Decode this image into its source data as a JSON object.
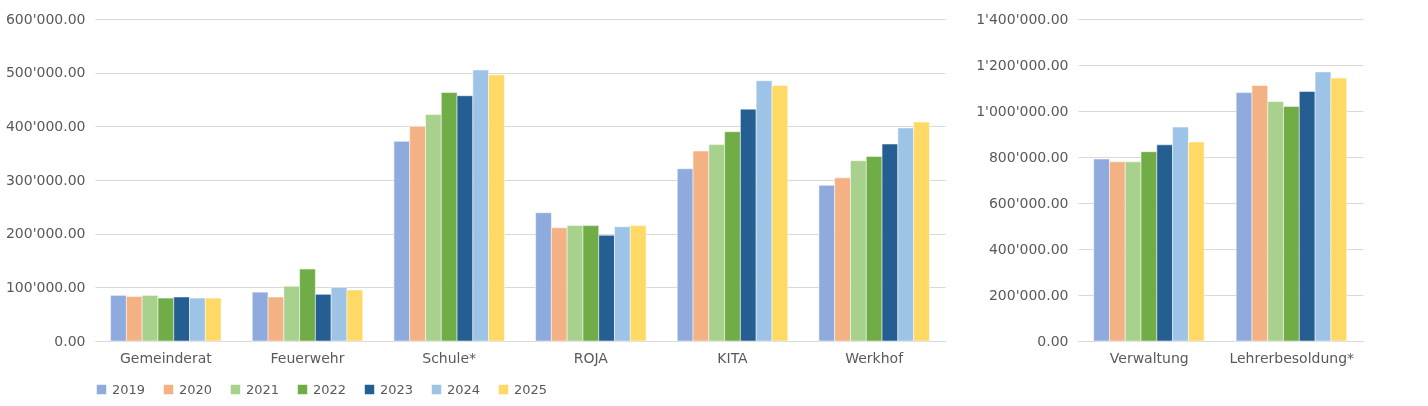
{
  "chart_data": [
    {
      "type": "bar",
      "categories": [
        "Gemeinderat",
        "Feuerwehr",
        "Schule*",
        "ROJA",
        "KITA",
        "Werkhof"
      ],
      "series": [
        {
          "name": "2019",
          "color": "#8faadc",
          "values": [
            85000,
            91000,
            372000,
            239000,
            321000,
            290000
          ]
        },
        {
          "name": "2020",
          "color": "#f4b183",
          "values": [
            83000,
            82000,
            400000,
            211000,
            354000,
            304000
          ]
        },
        {
          "name": "2021",
          "color": "#a9d18e",
          "values": [
            85000,
            102000,
            422000,
            215000,
            366000,
            336000
          ]
        },
        {
          "name": "2022",
          "color": "#70ad47",
          "values": [
            80000,
            134000,
            463000,
            215000,
            390000,
            344000
          ]
        },
        {
          "name": "2023",
          "color": "#255e91",
          "values": [
            82000,
            87000,
            457000,
            197000,
            432000,
            367000
          ]
        },
        {
          "name": "2024",
          "color": "#9dc3e6",
          "values": [
            80000,
            100000,
            505000,
            213000,
            485000,
            397000
          ]
        },
        {
          "name": "2025",
          "color": "#ffd966",
          "values": [
            80000,
            95000,
            496000,
            215000,
            476000,
            408000
          ]
        }
      ],
      "ylim": [
        0,
        600000
      ],
      "yticks": [
        {
          "value": 0,
          "label": "0.00"
        },
        {
          "value": 100000,
          "label": "100'000.00"
        },
        {
          "value": 200000,
          "label": "200'000.00"
        },
        {
          "value": 300000,
          "label": "300'000.00"
        },
        {
          "value": 400000,
          "label": "400'000.00"
        },
        {
          "value": 500000,
          "label": "500'000.00"
        },
        {
          "value": 600000,
          "label": "600'000.00"
        }
      ],
      "grid": "y",
      "legend": "bottom"
    },
    {
      "type": "bar",
      "categories": [
        "Verwaltung",
        "Lehrerbesoldung*"
      ],
      "series": [
        {
          "name": "2019",
          "color": "#8faadc",
          "values": [
            791000,
            1080000
          ]
        },
        {
          "name": "2020",
          "color": "#f4b183",
          "values": [
            779000,
            1111000
          ]
        },
        {
          "name": "2021",
          "color": "#a9d18e",
          "values": [
            779000,
            1041000
          ]
        },
        {
          "name": "2022",
          "color": "#70ad47",
          "values": [
            823000,
            1020000
          ]
        },
        {
          "name": "2023",
          "color": "#255e91",
          "values": [
            853000,
            1085000
          ]
        },
        {
          "name": "2024",
          "color": "#9dc3e6",
          "values": [
            930000,
            1170000
          ]
        },
        {
          "name": "2025",
          "color": "#ffd966",
          "values": [
            865000,
            1143000
          ]
        }
      ],
      "ylim": [
        0,
        1400000
      ],
      "yticks": [
        {
          "value": 0,
          "label": "0.00"
        },
        {
          "value": 200000,
          "label": "200'000.00"
        },
        {
          "value": 400000,
          "label": "400'000.00"
        },
        {
          "value": 600000,
          "label": "600'000.00"
        },
        {
          "value": 800000,
          "label": "800'000.00"
        },
        {
          "value": 1000000,
          "label": "1'000'000.00"
        },
        {
          "value": 1200000,
          "label": "1'200'000.00"
        },
        {
          "value": 1400000,
          "label": "1'400'000.00"
        }
      ],
      "grid": "y",
      "legend": false
    }
  ]
}
